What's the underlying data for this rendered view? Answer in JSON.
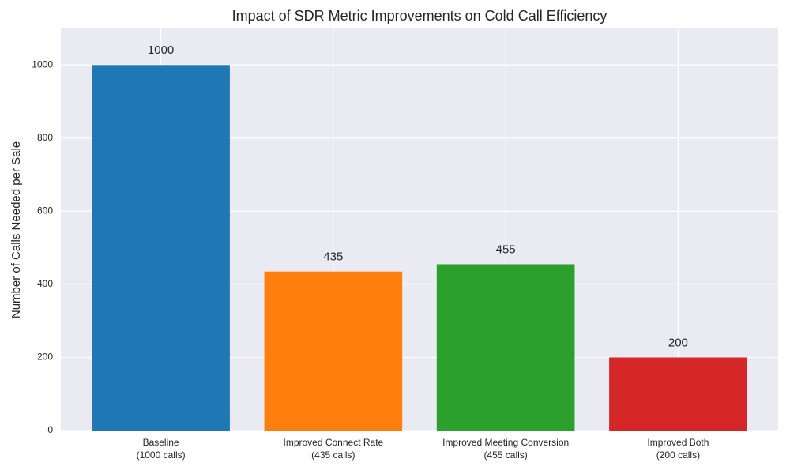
{
  "chart_data": {
    "type": "bar",
    "title": "Impact of SDR Metric Improvements on Cold Call Efficiency",
    "y_label": "Number of Calls Needed per Sale",
    "categories": [
      "Baseline\n(1000 calls)",
      "Improved Connect Rate\n(435 calls)",
      "Improved Meeting Conversion\n(455 calls)",
      "Improved Both\n(200 calls)"
    ],
    "values": [
      1000,
      435,
      455,
      200
    ],
    "colors": [
      "#1f77b4",
      "#ff7f0e",
      "#2ca02c",
      "#d62728"
    ],
    "ylim": [
      0,
      1100
    ],
    "yticks": [
      0,
      200,
      400,
      600,
      800,
      1000
    ],
    "grid": true
  }
}
